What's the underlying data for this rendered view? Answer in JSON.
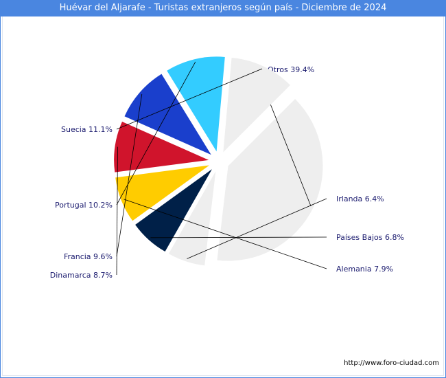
{
  "header": {
    "title": "Huévar del Aljarafe - Turistas extranjeros según país - Diciembre de 2024"
  },
  "footer": {
    "url": "http://www.foro-ciudad.com"
  },
  "chart_data": {
    "type": "pie",
    "title": "Huévar del Aljarafe - Turistas extranjeros según país - Diciembre de 2024",
    "slices": [
      {
        "name": "Otros",
        "value": 39.4,
        "label": "Otros 39.4%",
        "color": "#eeeeee"
      },
      {
        "name": "Irlanda",
        "value": 6.4,
        "label": "Irlanda 6.4%",
        "color": "#eeeeee"
      },
      {
        "name": "Países Bajos",
        "value": 6.8,
        "label": "Países Bajos 6.8%",
        "color": "#002048"
      },
      {
        "name": "Alemania",
        "value": 7.9,
        "label": "Alemania 7.9%",
        "color": "#ffcc00"
      },
      {
        "name": "Dinamarca",
        "value": 8.7,
        "label": "Dinamarca 8.7%",
        "color": "#d0142c"
      },
      {
        "name": "Francia",
        "value": 9.6,
        "label": "Francia 9.6%",
        "color": "#1a3fcc"
      },
      {
        "name": "Portugal",
        "value": 10.2,
        "label": "Portugal 10.2%",
        "color": "#33ccff"
      },
      {
        "name": "Suecia",
        "value": 11.1,
        "label": "Suecia 11.1%",
        "color": "#eeeeee"
      }
    ]
  }
}
